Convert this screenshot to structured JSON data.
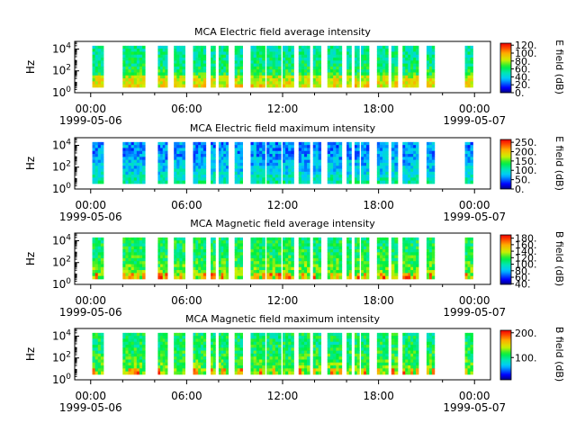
{
  "chart_data": [
    {
      "type": "heatmap",
      "title": "MCA  Electric field average intensity",
      "ylabel": "Hz",
      "colorbar_label": "E field (dB)",
      "colorbar_range": [
        0,
        125
      ],
      "colorbar_ticks": [
        "120.",
        "100.",
        "80.",
        "60.",
        "40.",
        "20.",
        "0."
      ],
      "colorbar_tick_values": [
        120,
        100,
        80,
        60,
        40,
        20,
        0
      ],
      "intensity": [
        0.35,
        0.6
      ]
    },
    {
      "type": "heatmap",
      "title": "MCA  Electric field maximum intensity",
      "ylabel": "Hz",
      "colorbar_label": "E field (dB)",
      "colorbar_range": [
        0,
        265
      ],
      "colorbar_ticks": [
        "250.",
        "200.",
        "150.",
        "100.",
        "50.",
        "0."
      ],
      "colorbar_tick_values": [
        250,
        200,
        150,
        100,
        50,
        0
      ],
      "intensity": [
        0.15,
        0.42
      ]
    },
    {
      "type": "heatmap",
      "title": "MCA  Magnetic field average intensity",
      "ylabel": "Hz",
      "colorbar_label": "B field (dB)",
      "colorbar_range": [
        38,
        190
      ],
      "colorbar_ticks": [
        "180.",
        "160.",
        "140.",
        "120.",
        "100.",
        "80.",
        "60.",
        "40."
      ],
      "colorbar_tick_values": [
        180,
        160,
        140,
        120,
        100,
        80,
        60,
        40
      ],
      "intensity": [
        0.42,
        0.62
      ]
    },
    {
      "type": "heatmap",
      "title": "MCA  Magnetic field maximum intensity",
      "ylabel": "Hz",
      "colorbar_label": "B field (dB)",
      "colorbar_range": [
        10,
        210
      ],
      "colorbar_ticks": [
        "200.",
        "100."
      ],
      "colorbar_tick_values": [
        200,
        100
      ],
      "intensity": [
        0.42,
        0.6
      ]
    }
  ],
  "shared": {
    "x_range_hours": [
      -1,
      25
    ],
    "x_tick_hours": [
      0,
      6,
      12,
      18,
      24
    ],
    "x_tick_labels": [
      "00:00",
      "06:00",
      "12:00",
      "18:00",
      "00:00"
    ],
    "x_date_labels": [
      "1999-05-06",
      "1999-05-07"
    ],
    "y_range_log10": [
      0,
      4.7
    ],
    "y_tick_log10": [
      0,
      2,
      4
    ],
    "y_tick_labels": [
      "10^0",
      "10^2",
      "10^4"
    ],
    "data_segments_hours": [
      [
        0.1,
        0.8
      ],
      [
        2.0,
        3.4
      ],
      [
        4.2,
        4.8
      ],
      [
        5.2,
        5.9
      ],
      [
        6.4,
        7.2
      ],
      [
        7.5,
        7.8
      ],
      [
        8.0,
        8.6
      ],
      [
        9.0,
        9.5
      ],
      [
        10.0,
        10.9
      ],
      [
        11.0,
        11.9
      ],
      [
        12.0,
        12.7
      ],
      [
        13.0,
        13.7
      ],
      [
        13.9,
        14.4
      ],
      [
        14.8,
        15.7
      ],
      [
        16.0,
        16.3
      ],
      [
        16.5,
        16.8
      ],
      [
        16.9,
        17.4
      ],
      [
        17.9,
        18.6
      ],
      [
        18.8,
        19.2
      ],
      [
        19.5,
        20.5
      ],
      [
        21.0,
        21.5
      ],
      [
        23.4,
        23.9
      ]
    ],
    "y_data_range_log10": [
      0.5,
      4.3
    ]
  }
}
